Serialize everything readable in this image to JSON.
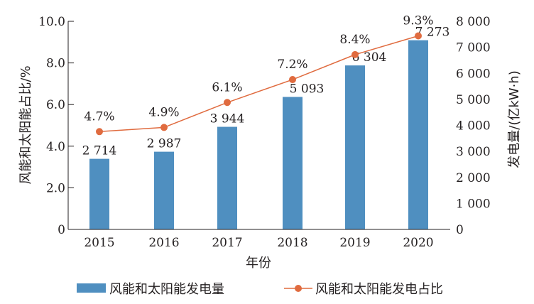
{
  "chart_data": {
    "type": "bar+line",
    "categories": [
      "2015",
      "2016",
      "2017",
      "2018",
      "2019",
      "2020"
    ],
    "series": [
      {
        "name": "风能和太阳能发电量",
        "type": "bar",
        "axis": "right",
        "values": [
          2714,
          2987,
          3944,
          5093,
          6304,
          7273
        ],
        "labels": [
          "2 714",
          "2 987",
          "3 944",
          "5 093",
          "6 304",
          "7 273"
        ],
        "color": "#4f8fc0"
      },
      {
        "name": "风能和太阳能发电占比",
        "type": "line",
        "axis": "left",
        "values": [
          4.7,
          4.9,
          6.1,
          7.2,
          8.4,
          9.3
        ],
        "labels": [
          "4.7%",
          "4.9%",
          "6.1%",
          "7.2%",
          "8.4%",
          "9.3%"
        ],
        "color": "#e06b3f"
      }
    ],
    "xlabel": "年份",
    "ylabel_left": "风能和太阳能占比/%",
    "ylabel_right": "发电量/(亿kW·h)",
    "ylim_left": [
      0,
      10
    ],
    "ylim_right": [
      0,
      8000
    ],
    "left_ticks": [
      "0",
      "2.0",
      "4.0",
      "6.0",
      "8.0",
      "10.0"
    ],
    "right_ticks": [
      "0",
      "1 000",
      "2 000",
      "3 000",
      "4 000",
      "5 000",
      "6 000",
      "7 000",
      "8 000"
    ],
    "legend": "bottom",
    "grid": false
  }
}
